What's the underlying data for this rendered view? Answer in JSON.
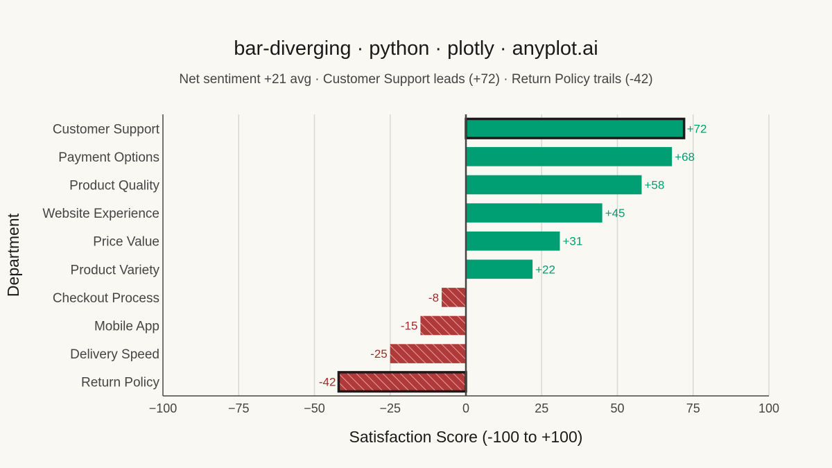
{
  "chart_data": {
    "type": "bar",
    "orientation": "horizontal",
    "title": "bar-diverging · python · plotly · anyplot.ai",
    "subtitle": "Net sentiment +21 avg · Customer Support leads (+72) · Return Policy trails (-42)",
    "xlabel": "Satisfaction Score (-100 to +100)",
    "ylabel": "Department",
    "xlim": [
      -100,
      100
    ],
    "xticks": [
      -100,
      -75,
      -50,
      -25,
      0,
      25,
      50,
      75,
      100
    ],
    "xtick_labels": [
      "−100",
      "−75",
      "−50",
      "−25",
      "0",
      "25",
      "50",
      "75",
      "100"
    ],
    "grid": true,
    "categories": [
      "Customer Support",
      "Payment Options",
      "Product Quality",
      "Website Experience",
      "Price Value",
      "Product Variety",
      "Checkout Process",
      "Mobile App",
      "Delivery Speed",
      "Return Policy"
    ],
    "values": [
      72,
      68,
      58,
      45,
      31,
      22,
      -8,
      -15,
      -25,
      -42
    ],
    "data_labels": [
      "+72",
      "+68",
      "+58",
      "+45",
      "+31",
      "+22",
      "-8",
      "-15",
      "-25",
      "-42"
    ],
    "highlighted": [
      "Customer Support",
      "Return Policy"
    ],
    "colors": {
      "positive": "#009E73",
      "negative": "#B03A3A",
      "positive_label": "#009E73",
      "negative_label": "#A32A2A",
      "highlight_outline": "#1a1a1a",
      "grid": "#D9D7D0",
      "axis": "#444444"
    }
  }
}
